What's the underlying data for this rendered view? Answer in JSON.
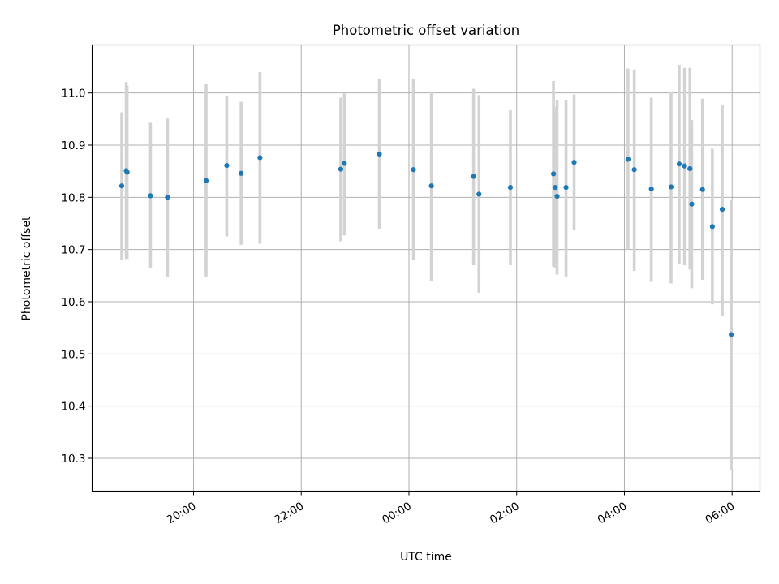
{
  "chart_data": {
    "type": "scatter",
    "title": "Photometric offset variation",
    "xlabel": "UTC time",
    "ylabel": "Photometric offset",
    "xlim": [
      "18:07",
      "06:31"
    ],
    "ylim": [
      10.237,
      11.092
    ],
    "x_ticks": [
      "20:00",
      "22:00",
      "00:00",
      "02:00",
      "04:00",
      "06:00"
    ],
    "y_ticks": [
      "10.3",
      "10.4",
      "10.5",
      "10.6",
      "10.7",
      "10.8",
      "10.9",
      "11.0"
    ],
    "grid": true,
    "colors": {
      "point": "#1f77b4",
      "errorbar": "#d3d3d3"
    },
    "series": [
      {
        "points": [
          {
            "t": "18:40",
            "y": 10.822,
            "lo": 10.68,
            "hi": 10.963
          },
          {
            "t": "18:45",
            "y": 10.851,
            "lo": 10.682,
            "hi": 11.021
          },
          {
            "t": "18:46",
            "y": 10.848,
            "lo": 10.682,
            "hi": 11.014
          },
          {
            "t": "19:12",
            "y": 10.803,
            "lo": 10.664,
            "hi": 10.943
          },
          {
            "t": "19:31",
            "y": 10.8,
            "lo": 10.648,
            "hi": 10.951
          },
          {
            "t": "20:14",
            "y": 10.832,
            "lo": 10.648,
            "hi": 11.017
          },
          {
            "t": "20:37",
            "y": 10.861,
            "lo": 10.725,
            "hi": 10.995
          },
          {
            "t": "20:53",
            "y": 10.846,
            "lo": 10.709,
            "hi": 10.983
          },
          {
            "t": "21:14",
            "y": 10.876,
            "lo": 10.711,
            "hi": 11.04
          },
          {
            "t": "22:44",
            "y": 10.854,
            "lo": 10.716,
            "hi": 10.991
          },
          {
            "t": "22:48",
            "y": 10.865,
            "lo": 10.727,
            "hi": 10.999
          },
          {
            "t": "23:27",
            "y": 10.883,
            "lo": 10.74,
            "hi": 11.026
          },
          {
            "t": "00:05",
            "y": 10.853,
            "lo": 10.68,
            "hi": 11.026
          },
          {
            "t": "00:25",
            "y": 10.822,
            "lo": 10.64,
            "hi": 11.003
          },
          {
            "t": "01:12",
            "y": 10.84,
            "lo": 10.67,
            "hi": 11.008
          },
          {
            "t": "01:18",
            "y": 10.806,
            "lo": 10.617,
            "hi": 10.996
          },
          {
            "t": "01:53",
            "y": 10.819,
            "lo": 10.67,
            "hi": 10.967
          },
          {
            "t": "02:41",
            "y": 10.845,
            "lo": 10.667,
            "hi": 11.023
          },
          {
            "t": "02:43",
            "y": 10.819,
            "lo": 10.665,
            "hi": 10.973
          },
          {
            "t": "02:45",
            "y": 10.802,
            "lo": 10.652,
            "hi": 10.987
          },
          {
            "t": "02:55",
            "y": 10.819,
            "lo": 10.648,
            "hi": 10.987
          },
          {
            "t": "03:04",
            "y": 10.867,
            "lo": 10.737,
            "hi": 10.997
          },
          {
            "t": "04:04",
            "y": 10.873,
            "lo": 10.7,
            "hi": 11.047
          },
          {
            "t": "04:11",
            "y": 10.853,
            "lo": 10.659,
            "hi": 11.045
          },
          {
            "t": "04:30",
            "y": 10.816,
            "lo": 10.638,
            "hi": 10.991
          },
          {
            "t": "04:52",
            "y": 10.82,
            "lo": 10.635,
            "hi": 11.003
          },
          {
            "t": "05:01",
            "y": 10.864,
            "lo": 10.672,
            "hi": 11.054
          },
          {
            "t": "05:07",
            "y": 10.86,
            "lo": 10.67,
            "hi": 11.048
          },
          {
            "t": "05:13",
            "y": 10.855,
            "lo": 10.662,
            "hi": 11.048
          },
          {
            "t": "05:15",
            "y": 10.787,
            "lo": 10.626,
            "hi": 10.948
          },
          {
            "t": "05:27",
            "y": 10.815,
            "lo": 10.642,
            "hi": 10.989
          },
          {
            "t": "05:38",
            "y": 10.744,
            "lo": 10.595,
            "hi": 10.893
          },
          {
            "t": "05:49",
            "y": 10.777,
            "lo": 10.573,
            "hi": 10.978
          },
          {
            "t": "05:59",
            "y": 10.537,
            "lo": 10.278,
            "hi": 10.795
          }
        ]
      }
    ]
  }
}
